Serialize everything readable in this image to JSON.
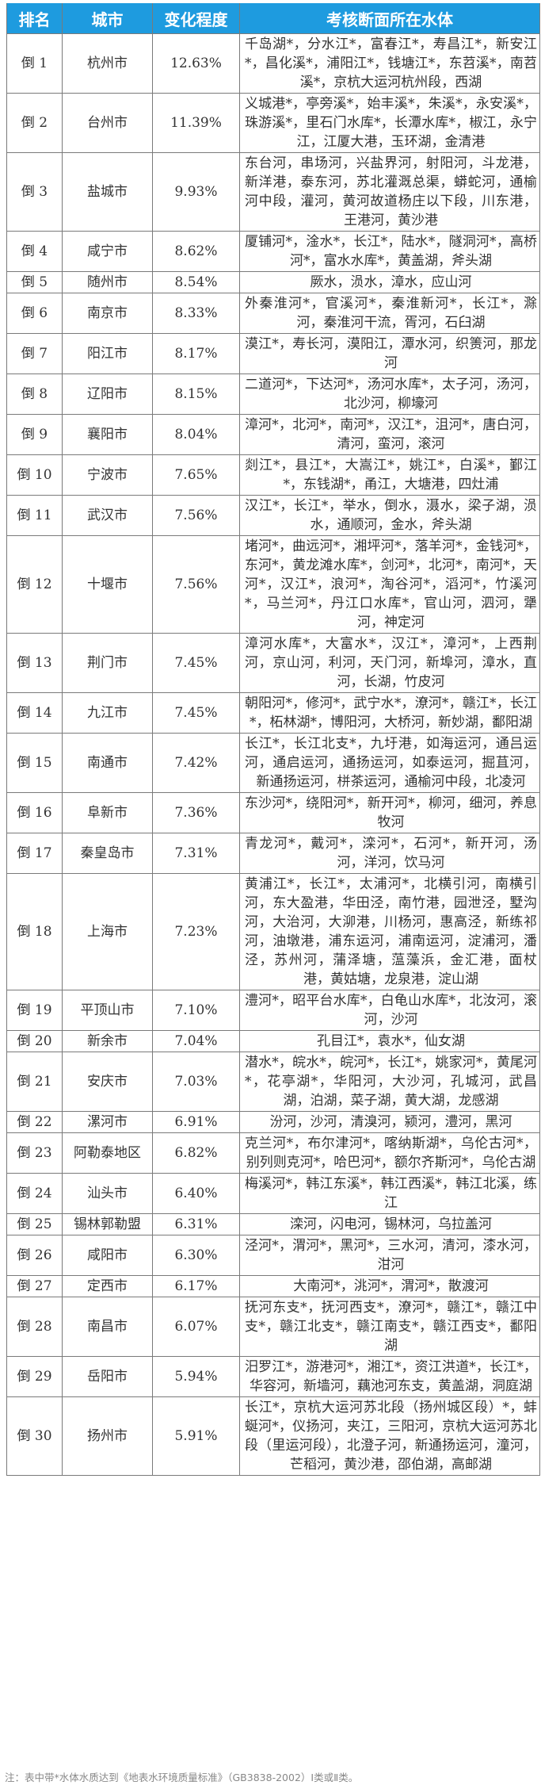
{
  "header": {
    "rank": "排名",
    "city": "城市",
    "change": "变化程度",
    "water": "考核断面所在水体"
  },
  "rows": [
    {
      "rank": "倒 1",
      "city": "杭州市",
      "change": "12.63%",
      "water": "千岛湖*，分水江*，富春江*，寿昌江*，新安江*，昌化溪*，浦阳江*，钱塘江*，东苕溪*，南苕溪*，京杭大运河杭州段，西湖"
    },
    {
      "rank": "倒 2",
      "city": "台州市",
      "change": "11.39%",
      "water": "义城港*，亭旁溪*，始丰溪*，朱溪*，永安溪*，珠游溪*，里石门水库*，长潭水库*，椒江，永宁江，江厦大港，玉环湖，金清港"
    },
    {
      "rank": "倒 3",
      "city": "盐城市",
      "change": "9.93%",
      "water": "东台河，串场河，兴盐界河，射阳河，斗龙港，新洋港，泰东河，苏北灌溉总渠，蟒蛇河，通榆河中段，灌河，黄河故道杨庄以下段，川东港，王港河，黄沙港"
    },
    {
      "rank": "倒 4",
      "city": "咸宁市",
      "change": "8.62%",
      "water": "厦铺河*，淦水*，长江*，陆水*，隧洞河*，高桥河*，富水水库*，黄盖湖，斧头湖"
    },
    {
      "rank": "倒 5",
      "city": "随州市",
      "change": "8.54%",
      "water": "厥水，涢水，漳水，应山河"
    },
    {
      "rank": "倒 6",
      "city": "南京市",
      "change": "8.33%",
      "water": "外秦淮河*，官溪河*，秦淮新河*，长江*，滁河，秦淮河干流，胥河，石臼湖"
    },
    {
      "rank": "倒 7",
      "city": "阳江市",
      "change": "8.17%",
      "water": "漠江*，寿长河，漠阳江，潭水河，织箦河，那龙河"
    },
    {
      "rank": "倒 8",
      "city": "辽阳市",
      "change": "8.15%",
      "water": "二道河*，下达河*，汤河水库*，太子河，汤河，北沙河，柳壕河"
    },
    {
      "rank": "倒 9",
      "city": "襄阳市",
      "change": "8.04%",
      "water": "漳河*，北河*，南河*，汉江*，沮河*，唐白河，清河，蛮河，滚河"
    },
    {
      "rank": "倒 10",
      "city": "宁波市",
      "change": "7.65%",
      "water": "剡江*，县江*，大嵩江*，姚江*，白溪*，鄞江*，东钱湖*，甬江，大塘港，四灶浦"
    },
    {
      "rank": "倒 11",
      "city": "武汉市",
      "change": "7.56%",
      "water": "汉江*，长江*，举水，倒水，滠水，梁子湖，涢水，通顺河，金水，斧头湖"
    },
    {
      "rank": "倒 12",
      "city": "十堰市",
      "change": "7.56%",
      "water": "堵河*，曲远河*，湘坪河*，落羊河*，金钱河*，东河*，黄龙滩水库*，剑河*，北河*，南河*，天河*，汉江*，浪河*，淘谷河*，滔河*，竹溪河*，马兰河*，丹江口水库*，官山河，泗河，犟河，神定河"
    },
    {
      "rank": "倒 13",
      "city": "荆门市",
      "change": "7.45%",
      "water": "漳河水库*，大富水*，汉江*，漳河*，上西荆河，京山河，利河，天门河，新埠河，漳水，直河，长湖，竹皮河"
    },
    {
      "rank": "倒 14",
      "city": "九江市",
      "change": "7.45%",
      "water": "朝阳河*，修河*，武宁水*，潦河*，赣江*，长江*，柘林湖*，博阳河，大桥河，新妙湖，鄱阳湖"
    },
    {
      "rank": "倒 15",
      "city": "南通市",
      "change": "7.42%",
      "water": "长江*，长江北支*，九圩港，如海运河，通吕运河，通启运河，通扬运河，如泰运河，掘苴河，新通扬运河，栟茶运河，通榆河中段，北凌河"
    },
    {
      "rank": "倒 16",
      "city": "阜新市",
      "change": "7.36%",
      "water": "东沙河*，绕阳河*，新开河*，柳河，细河，养息牧河"
    },
    {
      "rank": "倒 17",
      "city": "秦皇岛市",
      "change": "7.31%",
      "water": "青龙河*，戴河*，滦河*，石河*，新开河，汤河，洋河，饮马河"
    },
    {
      "rank": "倒 18",
      "city": "上海市",
      "change": "7.23%",
      "water": "黄浦江*，长江*，太浦河*，北横引河，南横引河，东大盈港，华田泾，南竹港，园泄泾，墅沟河，大治河，大泖港，川杨河，惠高泾，新练祁河，油墩港，浦东运河，浦南运河，淀浦河，潘泾，苏州河，蒲泽塘，蕰藻浜，金汇港，面杖港，黄姑塘，龙泉港，淀山湖"
    },
    {
      "rank": "倒 19",
      "city": "平顶山市",
      "change": "7.10%",
      "water": "澧河*，昭平台水库*，白龟山水库*，北汝河，滚河，沙河"
    },
    {
      "rank": "倒 20",
      "city": "新余市",
      "change": "7.04%",
      "water": "孔目江*，袁水*，仙女湖"
    },
    {
      "rank": "倒 21",
      "city": "安庆市",
      "change": "7.03%",
      "water": "潜水*，皖水*，皖河*，长江*，姚家河*，黄尾河*，花亭湖*，华阳河，大沙河，孔城河，武昌湖，泊湖，菜子湖，黄大湖，龙感湖"
    },
    {
      "rank": "倒 22",
      "city": "漯河市",
      "change": "6.91%",
      "water": "汾河，沙河，清溴河，颍河，澧河，黑河"
    },
    {
      "rank": "倒 23",
      "city": "阿勒泰地区",
      "change": "6.82%",
      "water": "克兰河*，布尔津河*，喀纳斯湖*，乌伦古河*，别列则克河*，哈巴河*，额尔齐斯河*，乌伦古湖"
    },
    {
      "rank": "倒 24",
      "city": "汕头市",
      "change": "6.40%",
      "water": "梅溪河*，韩江东溪*，韩江西溪*，韩江北溪，练江"
    },
    {
      "rank": "倒 25",
      "city": "锡林郭勒盟",
      "change": "6.31%",
      "water": "滦河，闪电河，锡林河，乌拉盖河"
    },
    {
      "rank": "倒 26",
      "city": "咸阳市",
      "change": "6.30%",
      "water": "泾河*，渭河*，黑河*，三水河，清河，漆水河，泔河"
    },
    {
      "rank": "倒 27",
      "city": "定西市",
      "change": "6.17%",
      "water": "大南河*，洮河*，渭河*，散渡河"
    },
    {
      "rank": "倒 28",
      "city": "南昌市",
      "change": "6.07%",
      "water": "抚河东支*，抚河西支*，潦河*，赣江*，赣江中支*，赣江北支*，赣江南支*，赣江西支*，鄱阳湖"
    },
    {
      "rank": "倒 29",
      "city": "岳阳市",
      "change": "5.94%",
      "water": "汨罗江*，游港河*，湘江*，资江洪道*，长江*，华容河，新墙河，藕池河东支，黄盖湖，洞庭湖"
    },
    {
      "rank": "倒 30",
      "city": "扬州市",
      "change": "5.91%",
      "water": "长江*，京杭大运河苏北段（扬州城区段）*，蚌蜒河*，仪扬河，夹江，三阳河，京杭大运河苏北段（里运河段），北澄子河，新通扬运河，潼河，芒稻河，黄沙港，邵伯湖，高邮湖"
    }
  ],
  "note": "注：表中带*水体水质达到《地表水环境质量标准》（GB3838-2002）Ⅰ类或Ⅱ类。",
  "colors": {
    "header_bg": "#1e9bdf",
    "header_text": "#ffffff",
    "border": "#7a7a7a"
  }
}
